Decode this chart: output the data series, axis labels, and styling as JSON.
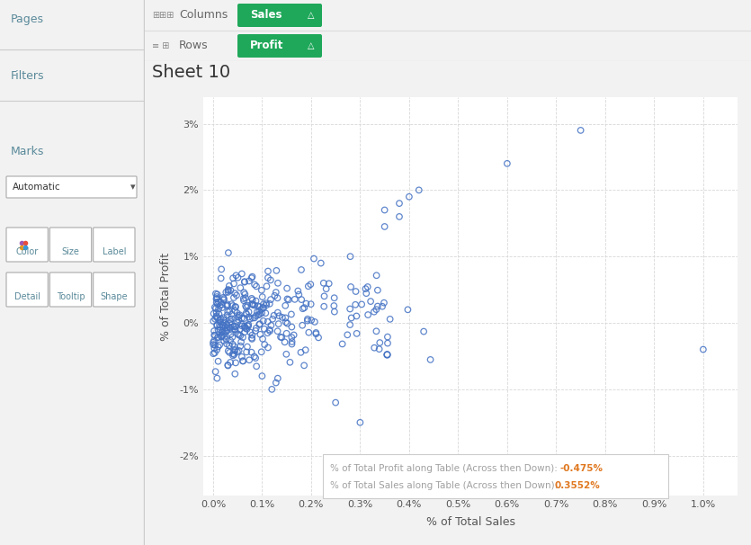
{
  "title": "Sheet 10",
  "xlabel": "% of Total Sales",
  "ylabel": "% of Total Profit",
  "x_ticks": [
    0.0,
    0.001,
    0.002,
    0.003,
    0.004,
    0.005,
    0.006,
    0.007,
    0.008,
    0.009,
    0.01
  ],
  "x_tick_labels": [
    "0.0%",
    "0.1%",
    "0.2%",
    "0.3%",
    "0.4%",
    "0.5%",
    "0.6%",
    "0.7%",
    "0.8%",
    "0.9%",
    "1.0%"
  ],
  "y_ticks": [
    -0.02,
    -0.01,
    0.0,
    0.01,
    0.02,
    0.03
  ],
  "y_tick_labels": [
    "-2%",
    "-1%",
    "0%",
    "1%",
    "2%",
    "3%"
  ],
  "xlim": [
    -0.0002,
    0.0107
  ],
  "ylim": [
    -0.026,
    0.034
  ],
  "marker_color": "#4472c4",
  "bg_color": "#f2f2f2",
  "chart_bg": "#ffffff",
  "panel_bg": "#ebebeb",
  "grid_color": "#d8d8d8",
  "tooltip_label_color": "#a0a0a0",
  "tooltip_value_color": "#e07820",
  "tooltip_bg": "#ffffff",
  "tooltip_border": "#cccccc",
  "pill_color": "#1fa85a",
  "section_color": "#5a8a9a",
  "col_pill": "Sales",
  "row_pill": "Profit",
  "tooltip_line1_label": "% of Total Profit along Table (Across then Down): ",
  "tooltip_line1_value": "-0.475%",
  "tooltip_line2_label": "% of Total Sales along Table (Across then Down): ",
  "tooltip_line2_value": "0.3552%"
}
